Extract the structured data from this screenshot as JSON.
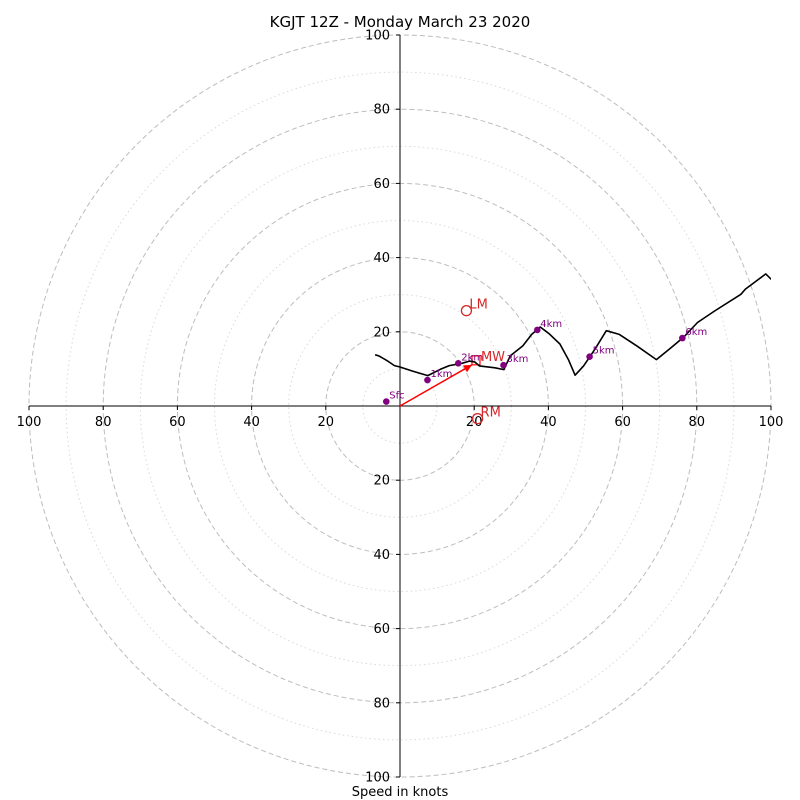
{
  "chart_data": {
    "type": "hodograph",
    "title": "KGJT 12Z - Monday March 23 2020",
    "xlabel": "Speed in knots",
    "units": "knots",
    "axis_range": [
      -100,
      100
    ],
    "major_rings": [
      20,
      40,
      60,
      80,
      100
    ],
    "minor_rings": [
      10,
      30,
      50,
      70,
      90
    ],
    "tick_labels": [
      "100",
      "80",
      "60",
      "40",
      "20",
      "20",
      "40",
      "60",
      "80",
      "100"
    ],
    "tick_values": [
      -100,
      -80,
      -60,
      -40,
      -20,
      20,
      40,
      60,
      80,
      100
    ],
    "hodograph_trace": [
      [
        -6.7,
        13.8
      ],
      [
        -5.7,
        13.5
      ],
      [
        -3.3,
        12.1
      ],
      [
        -1.5,
        10.9
      ],
      [
        0.0,
        10.5
      ],
      [
        3.4,
        9.4
      ],
      [
        7.5,
        8.2
      ],
      [
        10.9,
        9.9
      ],
      [
        13.3,
        10.9
      ],
      [
        16.7,
        11.5
      ],
      [
        18.7,
        12.1
      ],
      [
        20.1,
        11.9
      ],
      [
        21.4,
        10.8
      ],
      [
        25.6,
        10.3
      ],
      [
        28.0,
        9.8
      ],
      [
        28.6,
        11.1
      ],
      [
        29.7,
        13.5
      ],
      [
        33.1,
        16.2
      ],
      [
        35.5,
        19.3
      ],
      [
        37.8,
        21.3
      ],
      [
        40.2,
        19.5
      ],
      [
        43.1,
        16.7
      ],
      [
        45.4,
        12.5
      ],
      [
        47.2,
        8.3
      ],
      [
        49.5,
        10.8
      ],
      [
        52.6,
        15.4
      ],
      [
        55.6,
        20.3
      ],
      [
        59.1,
        19.3
      ],
      [
        64.0,
        16.1
      ],
      [
        69.1,
        12.5
      ],
      [
        72.8,
        15.5
      ],
      [
        76.4,
        18.5
      ],
      [
        80.2,
        22.5
      ],
      [
        84.8,
        25.6
      ],
      [
        91.9,
        30.1
      ],
      [
        93.1,
        31.5
      ],
      [
        98.6,
        35.6
      ],
      [
        100.0,
        34.2
      ],
      [
        101.0,
        33.7
      ]
    ],
    "height_markers": [
      {
        "label": "Sfc",
        "u": -3.7,
        "v": 1.2
      },
      {
        "label": "1km",
        "u": 7.4,
        "v": 7.0
      },
      {
        "label": "2km",
        "u": 15.7,
        "v": 11.5
      },
      {
        "label": "3km",
        "u": 27.9,
        "v": 11.0
      },
      {
        "label": "4km",
        "u": 37.0,
        "v": 20.5
      },
      {
        "label": "5km",
        "u": 51.1,
        "v": 13.3
      },
      {
        "label": "6km",
        "u": 76.1,
        "v": 18.3
      }
    ],
    "storm_motion": [
      {
        "label": "LM",
        "u": 17.9,
        "v": 25.7
      },
      {
        "label": "RM",
        "u": 20.9,
        "v": -3.4
      }
    ],
    "mean_wind": {
      "label": "MW",
      "u": 19.4,
      "v": 11.1
    },
    "colors": {
      "trace": "#000000",
      "markers": "#800080",
      "motion": "#d62728",
      "arrow": "#ff0000",
      "major_grid": "#bdbdbd",
      "minor_grid": "#d9d9d9",
      "axes": "#000000"
    }
  }
}
